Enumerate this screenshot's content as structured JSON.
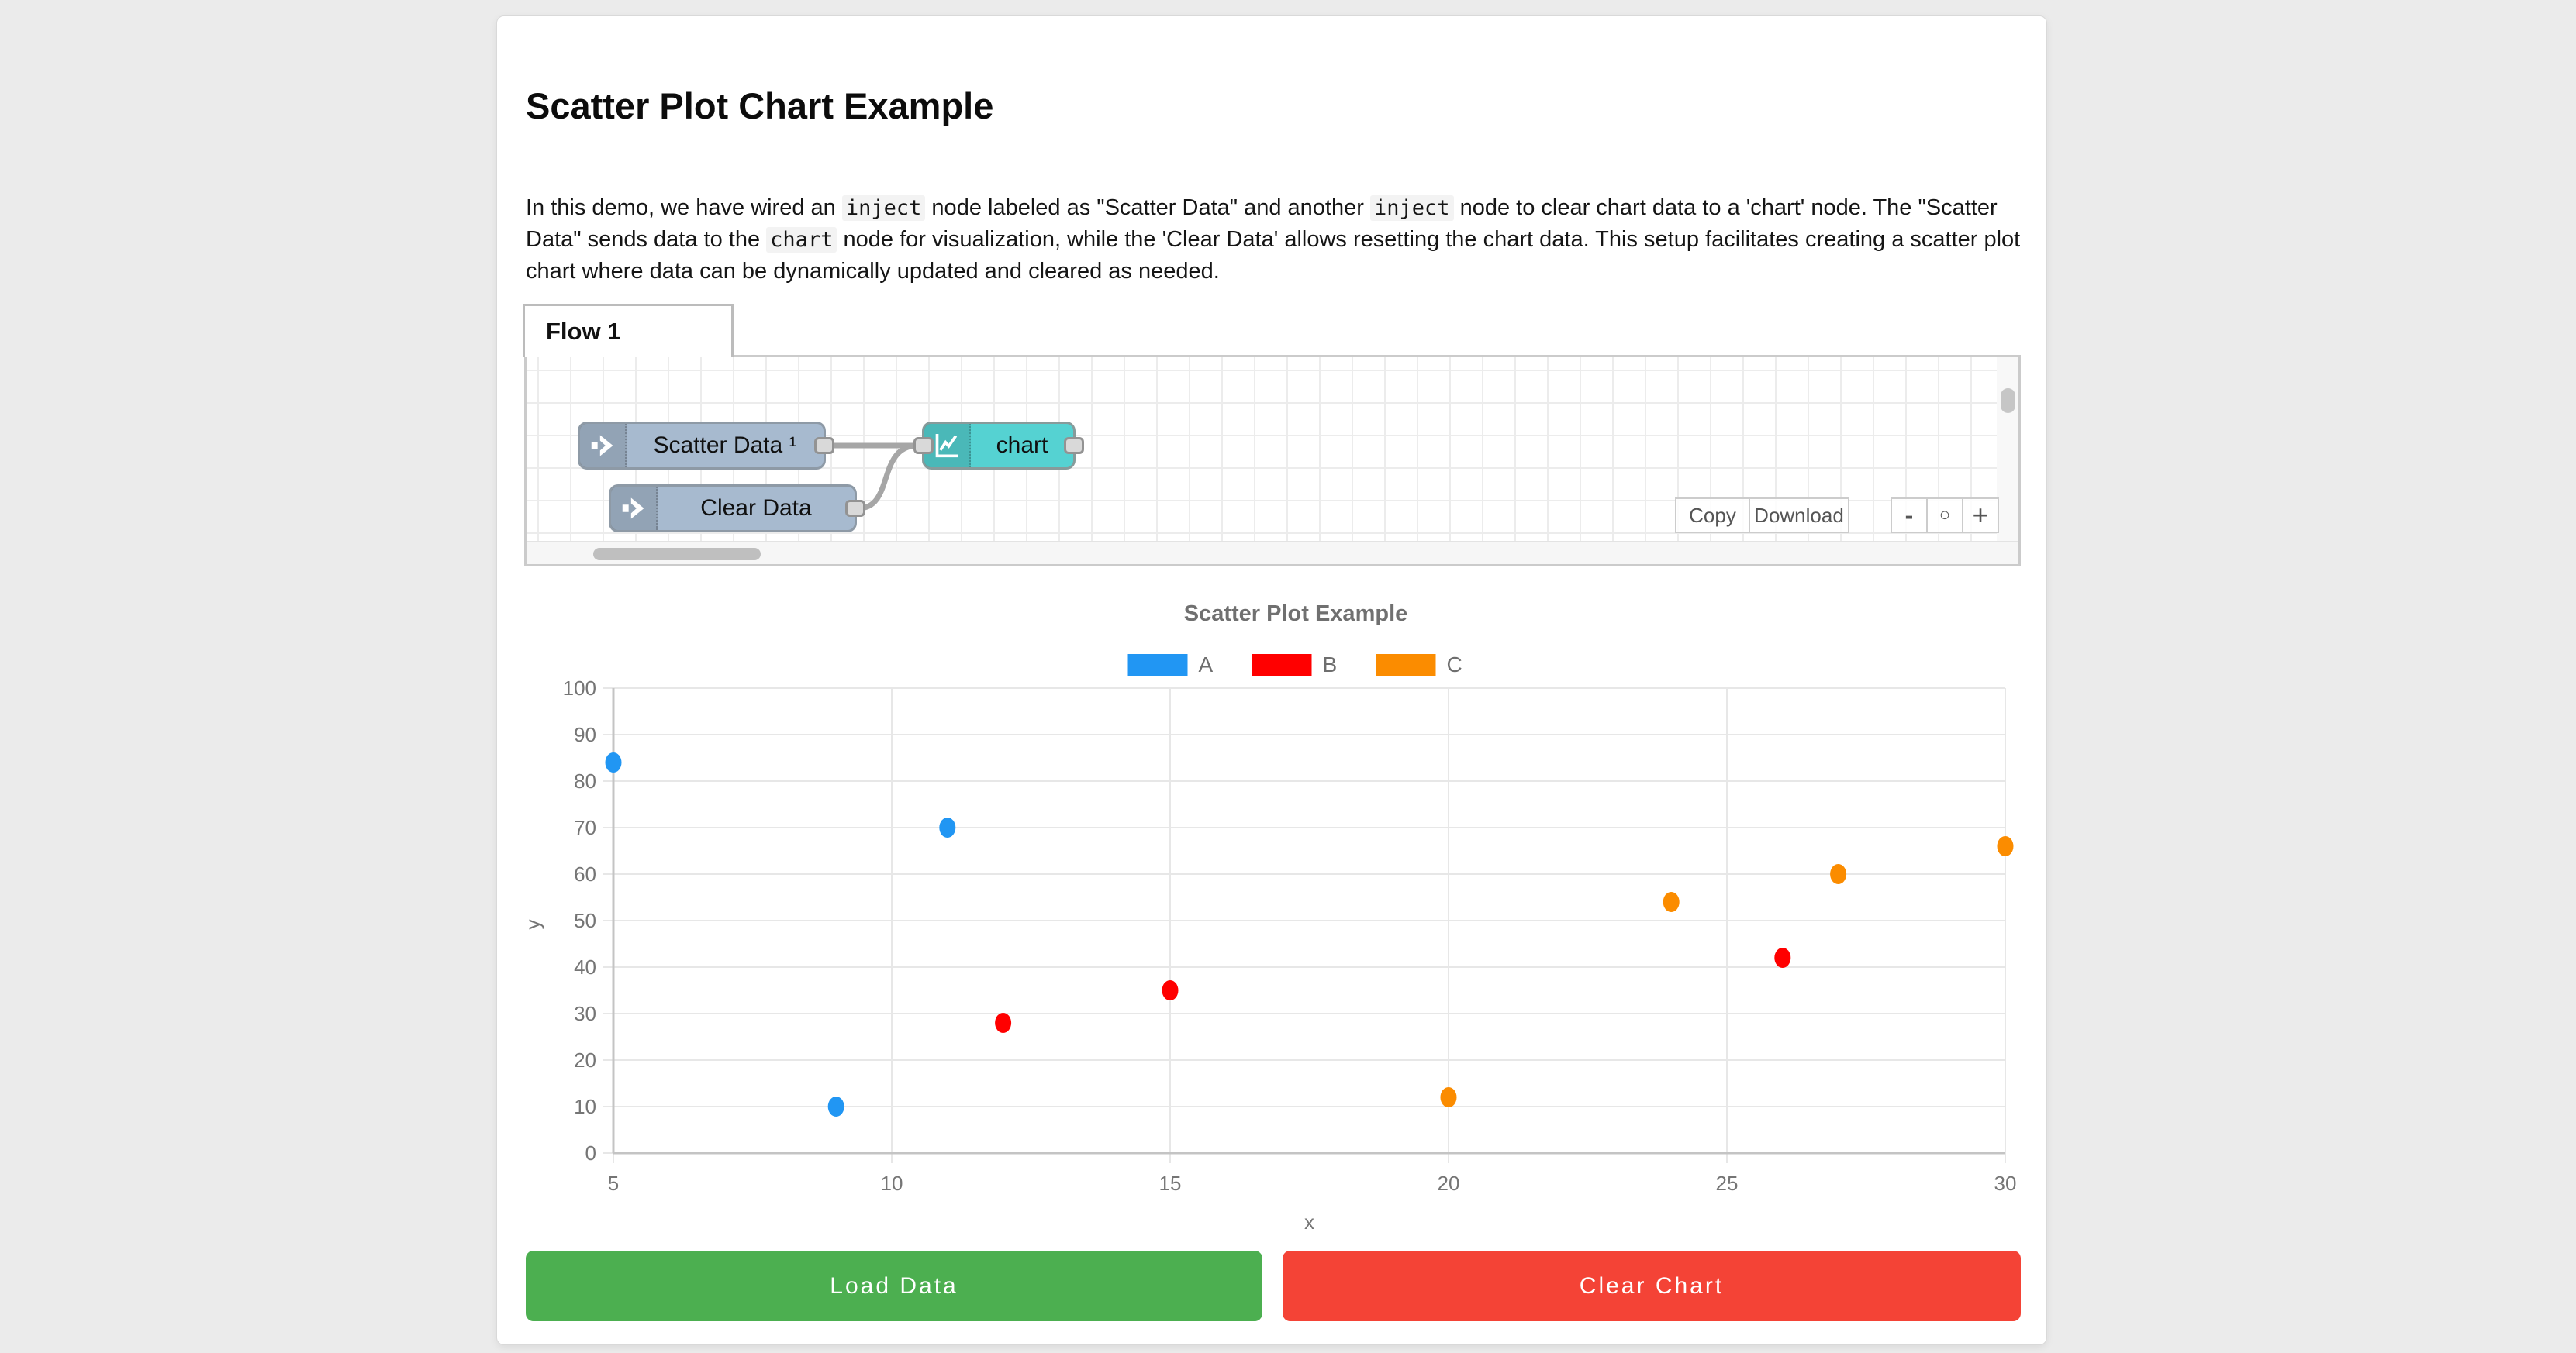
{
  "page": {
    "background": "#ebebeb"
  },
  "card": {
    "title": "Scatter Plot Chart Example",
    "description_segments": [
      {
        "type": "text",
        "value": "In this demo, we have wired an "
      },
      {
        "type": "code",
        "value": "inject"
      },
      {
        "type": "text",
        "value": " node labeled as \"Scatter Data\" and another "
      },
      {
        "type": "code",
        "value": "inject"
      },
      {
        "type": "text",
        "value": " node to clear chart data to a 'chart' node. The \"Scatter Data\" sends data to the "
      },
      {
        "type": "code",
        "value": "chart"
      },
      {
        "type": "text",
        "value": " node for visualization, while the 'Clear Data' allows resetting the chart data. This setup facilitates creating a scatter plot chart where data can be dynamically updated and cleared as needed."
      }
    ]
  },
  "flow_editor": {
    "tab_label": "Flow 1",
    "nodes": [
      {
        "id": "scatter-data",
        "label": "Scatter Data ¹",
        "type": "inject",
        "color": "#a7bacf",
        "border": "#8e9aa6"
      },
      {
        "id": "clear-data",
        "label": "Clear Data",
        "type": "inject",
        "color": "#a7bacf",
        "border": "#8e9aa6"
      },
      {
        "id": "chart",
        "label": "chart",
        "type": "chart",
        "color": "#55d2d2",
        "border": "#879b9b"
      }
    ],
    "toolbar": {
      "copy_label": "Copy",
      "download_label": "Download"
    },
    "zoom_controls": {
      "zoom_out": "-",
      "zoom_reset": "○",
      "zoom_in": "+"
    }
  },
  "chart_data": {
    "type": "scatter",
    "title": "Scatter Plot Example",
    "xlabel": "x",
    "ylabel": "y",
    "xlim": [
      5,
      30
    ],
    "ylim": [
      0,
      100
    ],
    "x_ticks": [
      5,
      10,
      15,
      20,
      25,
      30
    ],
    "y_ticks": [
      0,
      10,
      20,
      30,
      40,
      50,
      60,
      70,
      80,
      90,
      100
    ],
    "grid": true,
    "legend_position": "top",
    "series": [
      {
        "name": "A",
        "color": "#2196f3",
        "points": [
          [
            5,
            84
          ],
          [
            9,
            10
          ],
          [
            11,
            70
          ]
        ]
      },
      {
        "name": "B",
        "color": "#ff0000",
        "points": [
          [
            12,
            28
          ],
          [
            15,
            35
          ],
          [
            26,
            42
          ]
        ]
      },
      {
        "name": "C",
        "color": "#fb8c00",
        "points": [
          [
            20,
            12
          ],
          [
            24,
            54
          ],
          [
            27,
            60
          ],
          [
            30,
            66
          ]
        ]
      }
    ],
    "text_color": "#757575",
    "grid_color": "#e7e7e7",
    "axis_color": "#c4c4c4"
  },
  "actions": {
    "load_label": "Load Data",
    "load_color": "#4caf50",
    "clear_label": "Clear Chart",
    "clear_color": "#f44336"
  }
}
